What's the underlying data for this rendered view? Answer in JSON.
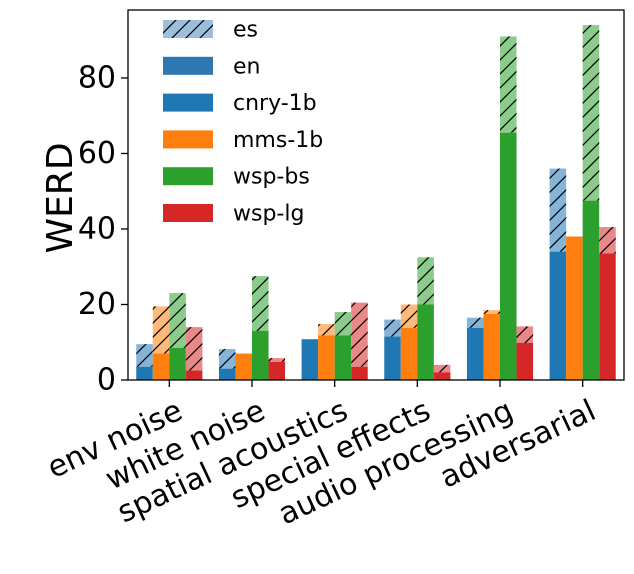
{
  "chart_data": {
    "type": "bar",
    "title": "",
    "xlabel": "",
    "ylabel": "WERD",
    "ylim": [
      0,
      98
    ],
    "yticks": [
      "0",
      "20",
      "40",
      "60",
      "80"
    ],
    "ytick_values": [
      0,
      20,
      40,
      60,
      80
    ],
    "grid": false,
    "legend_position": "top-left",
    "categories": [
      "env noise",
      "white noise",
      "spatial acoustics",
      "special effects",
      "audio processing",
      "adversarial"
    ],
    "series": [
      {
        "name": "cnry-1b",
        "color": "#1f77b4",
        "values": [
          3.5,
          3.0,
          10.8,
          11.5,
          13.8,
          34.0
        ],
        "values_es": [
          9.5,
          8.2,
          10.8,
          16.0,
          16.5,
          56.0
        ]
      },
      {
        "name": "mms-1b",
        "color": "#ff7f0e",
        "values": [
          7.0,
          7.0,
          11.8,
          13.8,
          17.5,
          38.0
        ],
        "values_es": [
          19.5,
          7.0,
          14.8,
          20.0,
          18.5,
          38.0
        ]
      },
      {
        "name": "wsp-bs",
        "color": "#2ca02c",
        "values": [
          8.5,
          13.0,
          11.8,
          20.0,
          65.5,
          47.5
        ],
        "values_es": [
          23.0,
          27.5,
          18.0,
          32.5,
          91.0,
          94.0
        ]
      },
      {
        "name": "wsp-lg",
        "color": "#d62728",
        "values": [
          2.5,
          4.8,
          3.5,
          2.0,
          9.8,
          33.5
        ],
        "values_es": [
          14.0,
          5.8,
          20.5,
          4.0,
          14.2,
          40.5
        ]
      }
    ],
    "legend": [
      {
        "label": "es",
        "color": "#9dbedb",
        "hatch": true
      },
      {
        "label": "en",
        "color": "#2f77b0",
        "hatch": false
      },
      {
        "label": "cnry-1b",
        "color": "#1f77b4",
        "hatch": false
      },
      {
        "label": "mms-1b",
        "color": "#ff7f0e",
        "hatch": false
      },
      {
        "label": "wsp-bs",
        "color": "#2ca02c",
        "hatch": false
      },
      {
        "label": "wsp-lg",
        "color": "#d62728",
        "hatch": false
      }
    ]
  }
}
